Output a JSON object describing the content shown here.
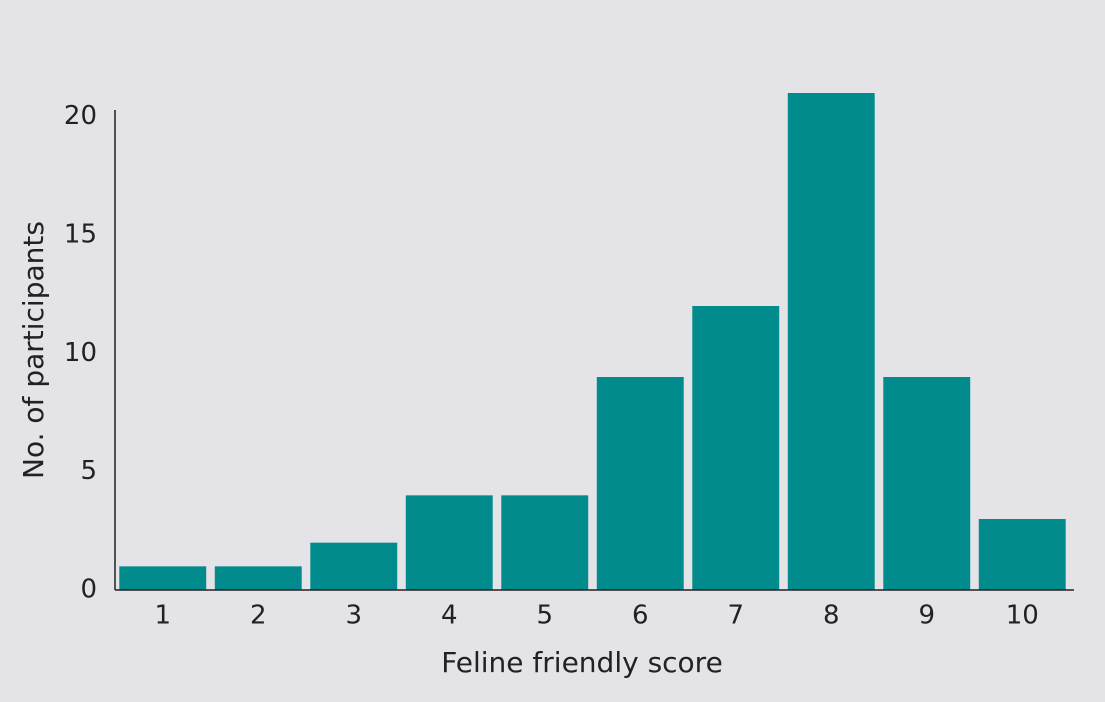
{
  "chart_data": {
    "type": "bar",
    "x_label": "Feline friendly score",
    "y_label": "No. of participants",
    "categories": [
      "1",
      "2",
      "3",
      "4",
      "5",
      "6",
      "7",
      "8",
      "9",
      "10"
    ],
    "values": [
      1,
      1,
      2,
      4,
      4,
      9,
      12,
      21,
      9,
      3
    ],
    "color": "#028b8c",
    "ylim": [
      0,
      21
    ],
    "yticks": [
      0,
      5,
      10,
      15,
      20
    ],
    "grid": false
  }
}
